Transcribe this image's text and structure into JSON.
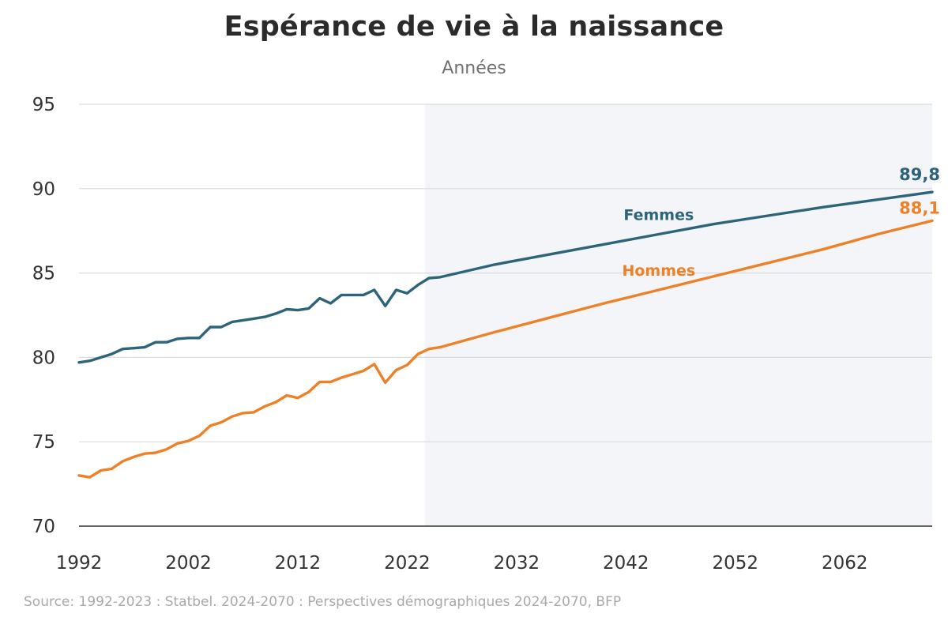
{
  "title": "Espérance de vie à la naissance",
  "subtitle": "Années",
  "source": "Source: 1992-2023 : Statbel. 2024-2070 : Perspectives démographiques 2024-2070, BFP",
  "chart_data": {
    "type": "line",
    "title": "Espérance de vie à la naissance",
    "subtitle": "Années",
    "ylim": [
      70,
      95
    ],
    "xlim": [
      1992,
      2070
    ],
    "yticks": [
      70,
      75,
      80,
      85,
      90,
      95
    ],
    "xticks": [
      1992,
      2002,
      2012,
      2022,
      2032,
      2042,
      2052,
      2062
    ],
    "grid": true,
    "projection_shading_from": 2024,
    "projection_shading_color": "#f4f5f8",
    "series": [
      {
        "name": "Femmes",
        "color": "#2d6479",
        "end_label": "89,8",
        "points": [
          [
            1992,
            79.7
          ],
          [
            1993,
            79.8
          ],
          [
            1994,
            80.0
          ],
          [
            1995,
            80.2
          ],
          [
            1996,
            80.5
          ],
          [
            1997,
            80.55
          ],
          [
            1998,
            80.6
          ],
          [
            1999,
            80.9
          ],
          [
            2000,
            80.9
          ],
          [
            2001,
            81.1
          ],
          [
            2002,
            81.15
          ],
          [
            2003,
            81.15
          ],
          [
            2004,
            81.8
          ],
          [
            2005,
            81.8
          ],
          [
            2006,
            82.1
          ],
          [
            2007,
            82.2
          ],
          [
            2008,
            82.3
          ],
          [
            2009,
            82.4
          ],
          [
            2010,
            82.6
          ],
          [
            2011,
            82.85
          ],
          [
            2012,
            82.8
          ],
          [
            2013,
            82.9
          ],
          [
            2014,
            83.5
          ],
          [
            2015,
            83.2
          ],
          [
            2016,
            83.7
          ],
          [
            2017,
            83.7
          ],
          [
            2018,
            83.7
          ],
          [
            2019,
            84.0
          ],
          [
            2020,
            83.05
          ],
          [
            2021,
            84.0
          ],
          [
            2022,
            83.8
          ],
          [
            2023,
            84.3
          ],
          [
            2024,
            84.7
          ],
          [
            2025,
            84.75
          ],
          [
            2030,
            85.5
          ],
          [
            2035,
            86.1
          ],
          [
            2040,
            86.7
          ],
          [
            2045,
            87.3
          ],
          [
            2050,
            87.9
          ],
          [
            2055,
            88.4
          ],
          [
            2060,
            88.9
          ],
          [
            2065,
            89.35
          ],
          [
            2070,
            89.8
          ]
        ]
      },
      {
        "name": "Hommes",
        "color": "#ee8027",
        "end_label": "88,1",
        "points": [
          [
            1992,
            73.0
          ],
          [
            1993,
            72.9
          ],
          [
            1994,
            73.3
          ],
          [
            1995,
            73.4
          ],
          [
            1996,
            73.85
          ],
          [
            1997,
            74.1
          ],
          [
            1998,
            74.3
          ],
          [
            1999,
            74.35
          ],
          [
            2000,
            74.55
          ],
          [
            2001,
            74.9
          ],
          [
            2002,
            75.05
          ],
          [
            2003,
            75.35
          ],
          [
            2004,
            75.95
          ],
          [
            2005,
            76.15
          ],
          [
            2006,
            76.5
          ],
          [
            2007,
            76.7
          ],
          [
            2008,
            76.75
          ],
          [
            2009,
            77.1
          ],
          [
            2010,
            77.35
          ],
          [
            2011,
            77.75
          ],
          [
            2012,
            77.6
          ],
          [
            2013,
            77.95
          ],
          [
            2014,
            78.55
          ],
          [
            2015,
            78.55
          ],
          [
            2016,
            78.8
          ],
          [
            2017,
            79.0
          ],
          [
            2018,
            79.2
          ],
          [
            2019,
            79.6
          ],
          [
            2020,
            78.5
          ],
          [
            2021,
            79.25
          ],
          [
            2022,
            79.55
          ],
          [
            2023,
            80.2
          ],
          [
            2024,
            80.5
          ],
          [
            2025,
            80.6
          ],
          [
            2030,
            81.5
          ],
          [
            2035,
            82.35
          ],
          [
            2040,
            83.2
          ],
          [
            2045,
            84.0
          ],
          [
            2050,
            84.8
          ],
          [
            2055,
            85.6
          ],
          [
            2060,
            86.4
          ],
          [
            2065,
            87.3
          ],
          [
            2070,
            88.1
          ]
        ]
      }
    ]
  }
}
